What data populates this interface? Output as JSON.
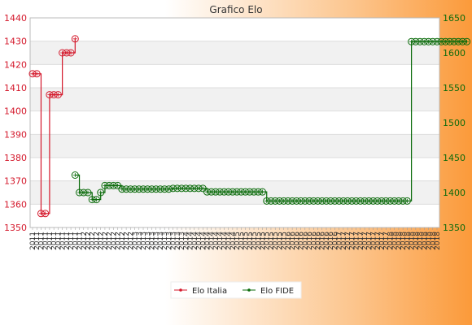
{
  "chart_data": {
    "type": "line",
    "title": "Grafico Elo",
    "left_axis": {
      "ylim": [
        1350,
        1440
      ],
      "ticks": [
        1350,
        1360,
        1370,
        1380,
        1390,
        1400,
        1410,
        1420,
        1430,
        1440
      ],
      "color": "#d4182b"
    },
    "right_axis": {
      "ylim": [
        1350,
        1650
      ],
      "ticks": [
        1350,
        1400,
        1450,
        1500,
        1550,
        1600,
        1650
      ],
      "color": "#0b6b0b"
    },
    "x_count": 96,
    "x_tick_labels": [
      "2011",
      "2011",
      "2011",
      "2011",
      "2011",
      "2011",
      "2011",
      "2011",
      "2011",
      "2011",
      "2011",
      "2011",
      "2012",
      "2012",
      "2012",
      "2012",
      "2012",
      "2012",
      "2012",
      "2012",
      "2012",
      "2012",
      "2012",
      "2012",
      "2013",
      "2013",
      "2013",
      "2013",
      "2013",
      "2013",
      "2013",
      "2013",
      "2013",
      "2013",
      "2013",
      "2013",
      "2014",
      "2014",
      "2014",
      "2014",
      "2014",
      "2014",
      "2014",
      "2014",
      "2014",
      "2014",
      "2014",
      "2014",
      "2015",
      "2015",
      "2015",
      "2015",
      "2015",
      "2015",
      "2015",
      "2015",
      "2015",
      "2015",
      "2015",
      "2015",
      "2016",
      "2016",
      "2016",
      "2016",
      "2016",
      "2016",
      "2016",
      "2016",
      "2016",
      "2016",
      "2016",
      "2016",
      "2017",
      "2017",
      "2017",
      "2017",
      "2017",
      "2017",
      "2017",
      "2017",
      "2017",
      "2017",
      "2017",
      "2017",
      "2018",
      "2018",
      "2018",
      "2018",
      "2018",
      "2018",
      "2018",
      "2018",
      "2018",
      "2018",
      "2018",
      "2018"
    ],
    "series": [
      {
        "name": "Elo Italia",
        "axis": "left",
        "color": "#d4182b",
        "start_index": 0,
        "values": [
          1416,
          1416,
          1356,
          1356,
          1407,
          1407,
          1407,
          1425,
          1425,
          1425,
          1431
        ]
      },
      {
        "name": "Elo FIDE",
        "axis": "right",
        "color": "#0b6b0b",
        "start_index": 10,
        "values": [
          1425,
          1400,
          1400,
          1400,
          1390,
          1390,
          1400,
          1410,
          1410,
          1410,
          1410,
          1405,
          1405,
          1405,
          1405,
          1405,
          1405,
          1405,
          1405,
          1405,
          1405,
          1405,
          1405,
          1406,
          1406,
          1406,
          1406,
          1406,
          1406,
          1406,
          1406,
          1401,
          1401,
          1401,
          1401,
          1401,
          1401,
          1401,
          1401,
          1401,
          1401,
          1401,
          1401,
          1401,
          1401,
          1388,
          1388,
          1388,
          1388,
          1388,
          1388,
          1388,
          1388,
          1388,
          1388,
          1388,
          1388,
          1388,
          1388,
          1388,
          1388,
          1388,
          1388,
          1388,
          1388,
          1388,
          1388,
          1388,
          1388,
          1388,
          1388,
          1388,
          1388,
          1388,
          1388,
          1388,
          1388,
          1388,
          1388,
          1616,
          1616,
          1616,
          1616,
          1616,
          1616,
          1616,
          1616,
          1616,
          1616,
          1616,
          1616,
          1616,
          1616
        ]
      }
    ],
    "grid": true,
    "legend_position": "bottom"
  }
}
